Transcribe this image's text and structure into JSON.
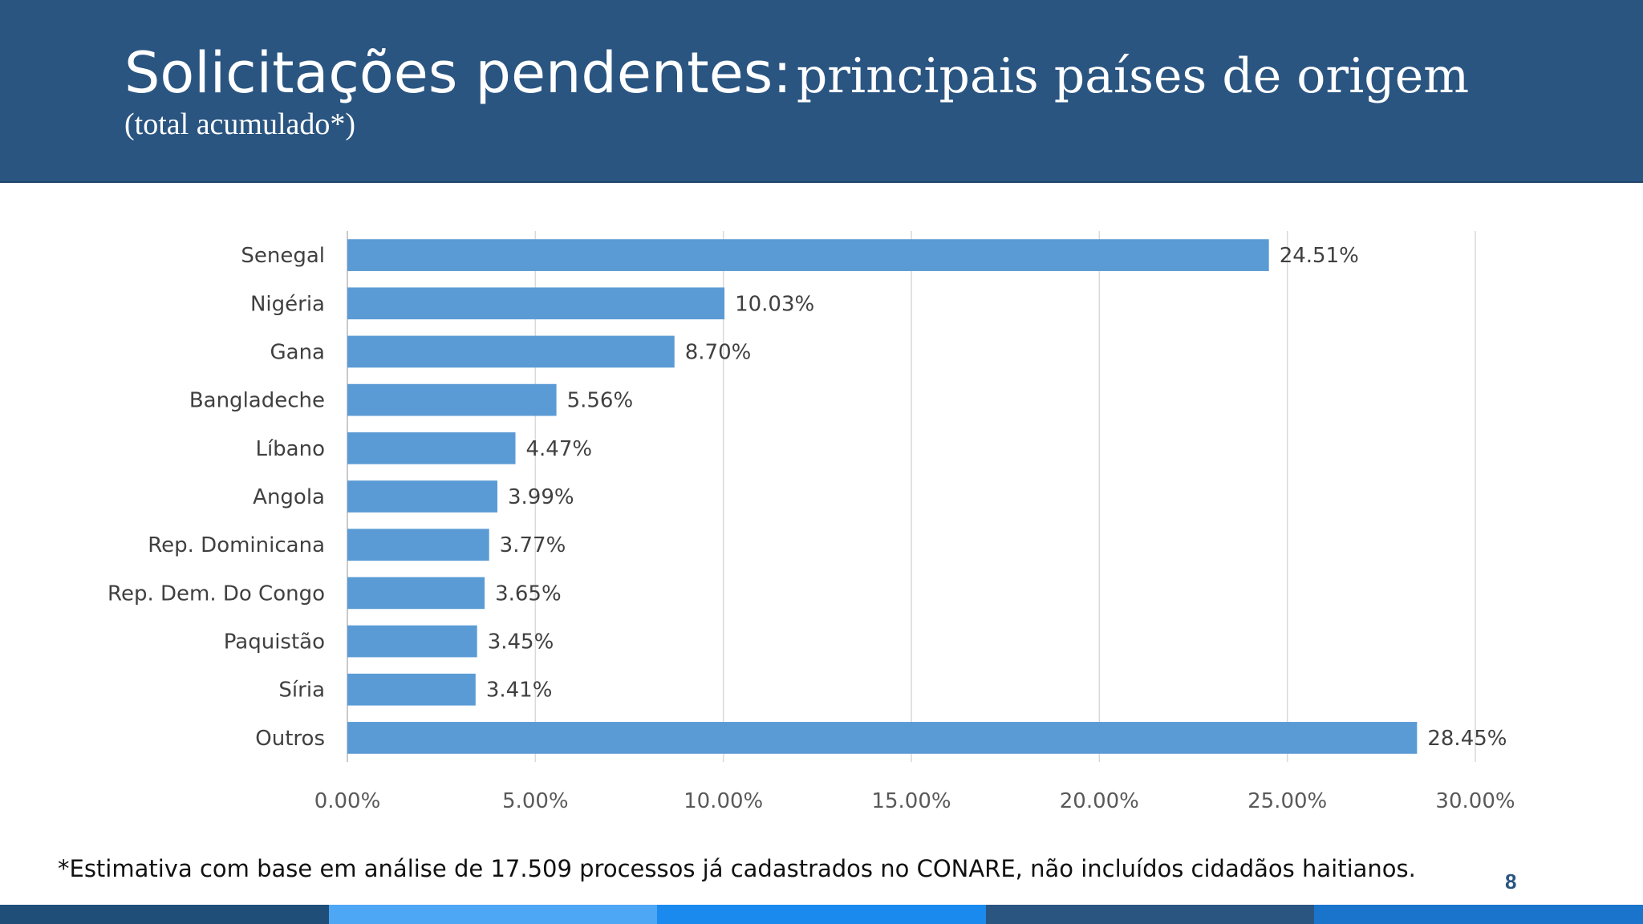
{
  "slide": {
    "title_bold": "Solicitações pendentes:",
    "title_rest": "principais países de origem",
    "subtitle": "(total acumulado*)",
    "footnote": "*Estimativa com base em análise de 17.509 processos já cadastrados no CONARE, não incluídos cidadãos haitianos.",
    "page_number": "8"
  },
  "colors": {
    "header": "#2a5581",
    "bar": "#5b9bd5",
    "bottom_bar": [
      "#1f4e79",
      "#4ea7f5",
      "#1a8aee",
      "#2a5581",
      "#1a74cc"
    ]
  },
  "chart_data": {
    "type": "bar",
    "orientation": "horizontal",
    "categories": [
      "Senegal",
      "Nigéria",
      "Gana",
      "Bangladeche",
      "Líbano",
      "Angola",
      "Rep. Dominicana",
      "Rep. Dem. Do Congo",
      "Paquistão",
      "Síria",
      "Outros"
    ],
    "values": [
      24.51,
      10.03,
      8.7,
      5.56,
      4.47,
      3.99,
      3.77,
      3.65,
      3.45,
      3.41,
      28.45
    ],
    "value_labels": [
      "24.51%",
      "10.03%",
      "8.70%",
      "5.56%",
      "4.47%",
      "3.99%",
      "3.77%",
      "3.65%",
      "3.45%",
      "3.41%",
      "28.45%"
    ],
    "xlim": [
      0,
      30
    ],
    "x_ticks": [
      0,
      5,
      10,
      15,
      20,
      25,
      30
    ],
    "x_tick_labels": [
      "0.00%",
      "5.00%",
      "10.00%",
      "15.00%",
      "20.00%",
      "25.00%",
      "30.00%"
    ],
    "grid": "vertical",
    "title": "",
    "xlabel": "",
    "ylabel": ""
  }
}
